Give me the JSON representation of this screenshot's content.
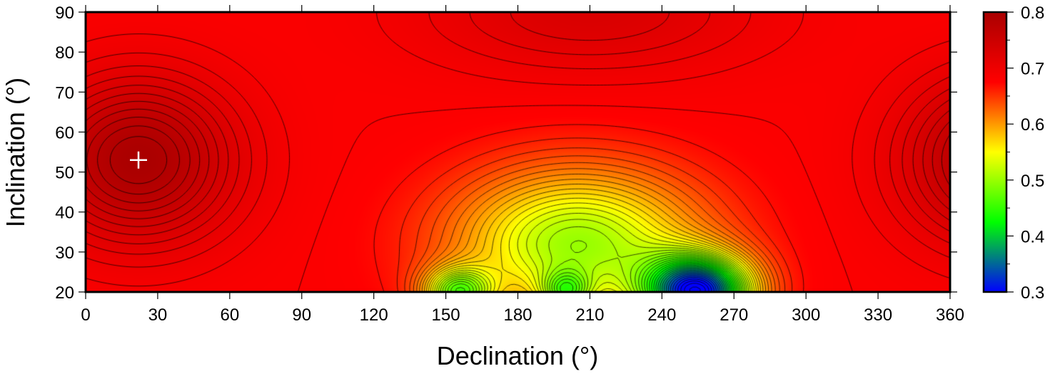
{
  "chart_data": {
    "type": "heatmap",
    "title": "",
    "xlabel": "Declination (°)",
    "ylabel": "Inclination (°)",
    "xlim": [
      0,
      360
    ],
    "ylim": [
      20,
      90
    ],
    "xticks": [
      "0",
      "30",
      "60",
      "90",
      "120",
      "150",
      "180",
      "210",
      "240",
      "270",
      "300",
      "330",
      "360"
    ],
    "yticks": [
      "20",
      "30",
      "40",
      "50",
      "60",
      "70",
      "80",
      "90"
    ],
    "colorbar": {
      "range": [
        0.3,
        0.8
      ],
      "ticks": [
        "0.3",
        "0.4",
        "0.5",
        "0.6",
        "0.7",
        "0.8"
      ],
      "colors": [
        "#0000ff",
        "#00ff00",
        "#ffff00",
        "#ff0000",
        "#aa0000"
      ]
    },
    "field": {
      "base": 0.68,
      "features": [
        {
          "x": 22,
          "y": 53,
          "amp": 0.12,
          "sx": 40,
          "sy": 20
        },
        {
          "x": 382,
          "y": 53,
          "amp": 0.12,
          "sx": 40,
          "sy": 20
        },
        {
          "x": 255,
          "y": 20,
          "amp": -0.36,
          "sx": 22,
          "sy": 9
        },
        {
          "x": 155,
          "y": 20,
          "amp": -0.18,
          "sx": 14,
          "sy": 6
        },
        {
          "x": 200,
          "y": 20,
          "amp": -0.12,
          "sx": 10,
          "sy": 5
        },
        {
          "x": 205,
          "y": 32,
          "amp": -0.18,
          "sx": 50,
          "sy": 18
        },
        {
          "x": 210,
          "y": 90,
          "amp": 0.05,
          "sx": 70,
          "sy": 15
        }
      ],
      "contour_interval": 0.01
    },
    "marker": {
      "declination": 22,
      "inclination": 53,
      "symbol": "+",
      "color": "#ffffff"
    }
  }
}
